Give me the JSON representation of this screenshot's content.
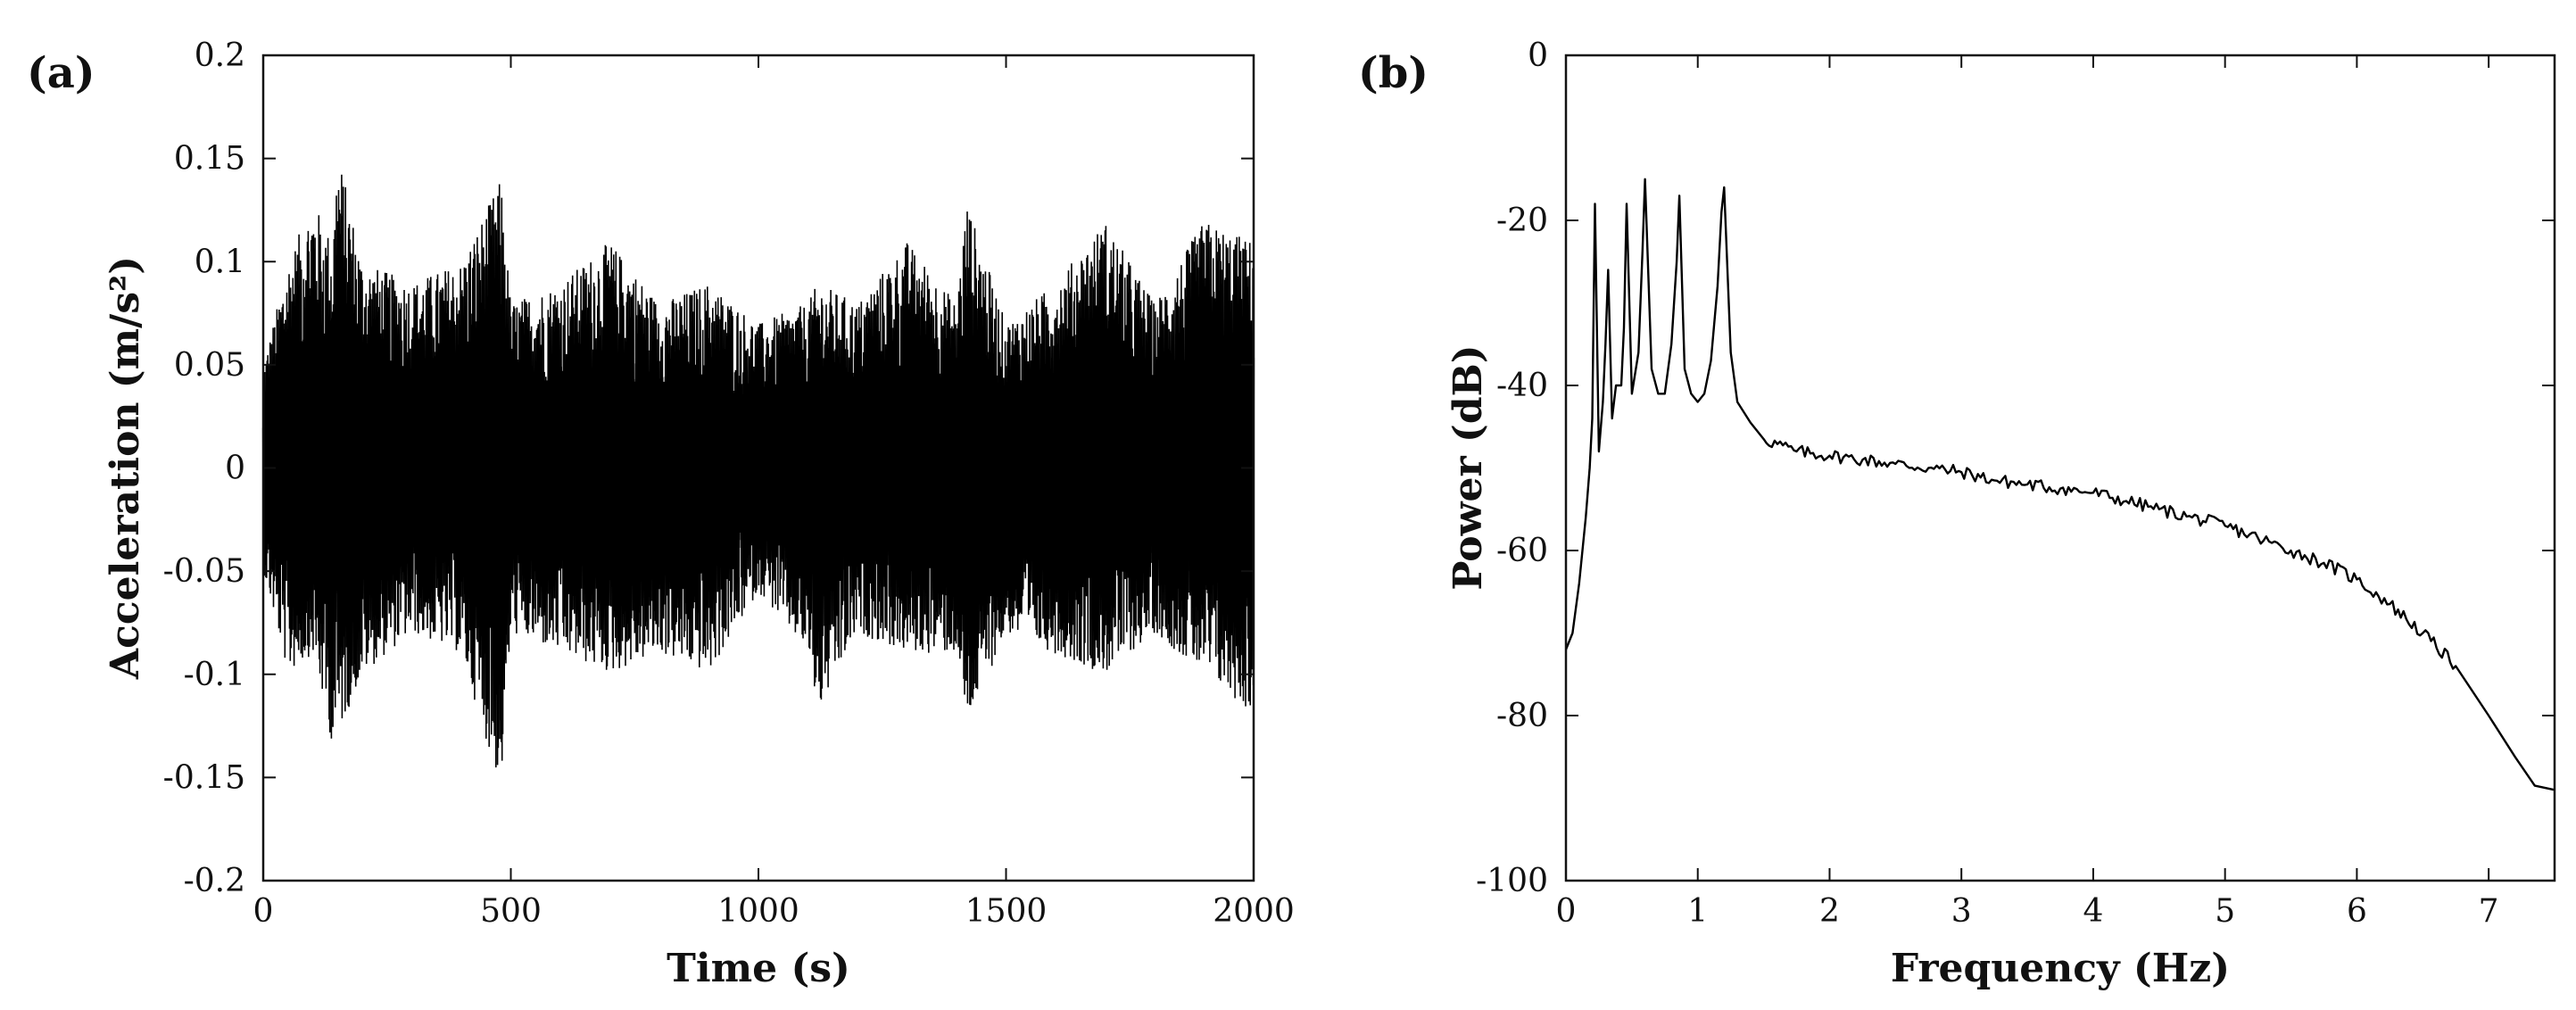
{
  "chart_data": [
    {
      "type": "line",
      "panel_label": "(a)",
      "title": "",
      "xlabel": "Time (s)",
      "ylabel": "Acceleration (m/s²)",
      "xlim": [
        0,
        2000
      ],
      "ylim": [
        -0.2,
        0.2
      ],
      "xticks": [
        "0",
        "500",
        "1000",
        "1500",
        "2000"
      ],
      "yticks": [
        "0.2",
        "0.15",
        "0.1",
        "0.05",
        "0",
        "-0.05",
        "-0.1",
        "-0.15",
        "-0.2"
      ],
      "grid": false,
      "line_color": "#000000",
      "series": [
        {
          "envelope_x": [
            0,
            50,
            100,
            140,
            150,
            200,
            300,
            400,
            460,
            480,
            500,
            600,
            700,
            800,
            900,
            1000,
            1100,
            1120,
            1200,
            1300,
            1400,
            1420,
            1500,
            1600,
            1700,
            1800,
            1900,
            2000
          ],
          "envelope_upper": [
            0.05,
            0.1,
            0.13,
            0.11,
            0.155,
            0.1,
            0.09,
            0.1,
            0.13,
            0.14,
            0.08,
            0.09,
            0.11,
            0.08,
            0.09,
            0.07,
            0.08,
            0.09,
            0.08,
            0.11,
            0.08,
            0.13,
            0.07,
            0.09,
            0.12,
            0.08,
            0.12,
            0.11
          ],
          "envelope_lower": [
            -0.05,
            -0.1,
            -0.09,
            -0.135,
            -0.13,
            -0.1,
            -0.08,
            -0.09,
            -0.14,
            -0.155,
            -0.08,
            -0.09,
            -0.1,
            -0.09,
            -0.1,
            -0.06,
            -0.09,
            -0.12,
            -0.08,
            -0.09,
            -0.09,
            -0.125,
            -0.08,
            -0.09,
            -0.1,
            -0.08,
            -0.1,
            -0.12
          ]
        }
      ]
    },
    {
      "type": "line",
      "panel_label": "(b)",
      "title": "",
      "xlabel": "Frequency (Hz)",
      "ylabel": "Power (dB)",
      "xlim": [
        0,
        7.5
      ],
      "ylim": [
        -100,
        0
      ],
      "xticks": [
        "0",
        "1",
        "2",
        "3",
        "4",
        "5",
        "6",
        "7"
      ],
      "yticks": [
        "0",
        "-20",
        "-40",
        "-60",
        "-80",
        "-100"
      ],
      "grid": false,
      "line_color": "#000000",
      "series": [
        {
          "x": [
            0,
            0.05,
            0.1,
            0.15,
            0.18,
            0.2,
            0.22,
            0.25,
            0.28,
            0.3,
            0.32,
            0.35,
            0.38,
            0.42,
            0.44,
            0.46,
            0.5,
            0.55,
            0.58,
            0.6,
            0.65,
            0.7,
            0.75,
            0.8,
            0.84,
            0.86,
            0.9,
            0.95,
            1.0,
            1.05,
            1.1,
            1.15,
            1.18,
            1.2,
            1.25,
            1.3,
            1.4,
            1.5,
            1.75,
            2.0,
            2.25,
            2.5,
            2.75,
            3.0,
            3.25,
            3.5,
            3.75,
            4.0,
            4.25,
            4.5,
            4.75,
            5.0,
            5.25,
            5.5,
            5.75,
            6.0,
            6.25,
            6.5,
            6.75,
            7.0,
            7.2,
            7.35,
            7.5
          ],
          "y": [
            -72,
            -70,
            -64,
            -56,
            -50,
            -44,
            -18,
            -48,
            -42,
            -35,
            -26,
            -44,
            -40,
            -40,
            -33,
            -18,
            -41,
            -36,
            -24,
            -15,
            -38,
            -41,
            -41,
            -35,
            -25,
            -17,
            -38,
            -41,
            -42,
            -41,
            -37,
            -28,
            -19,
            -16,
            -36,
            -42,
            -44.5,
            -46.5,
            -48,
            -48.5,
            -49,
            -49.5,
            -50,
            -50.5,
            -51.5,
            -52,
            -52.5,
            -53,
            -54,
            -55,
            -56,
            -57,
            -58.5,
            -60,
            -61.5,
            -63.5,
            -66.5,
            -70,
            -74,
            -80,
            -85,
            -88.5,
            -89
          ]
        }
      ]
    }
  ]
}
